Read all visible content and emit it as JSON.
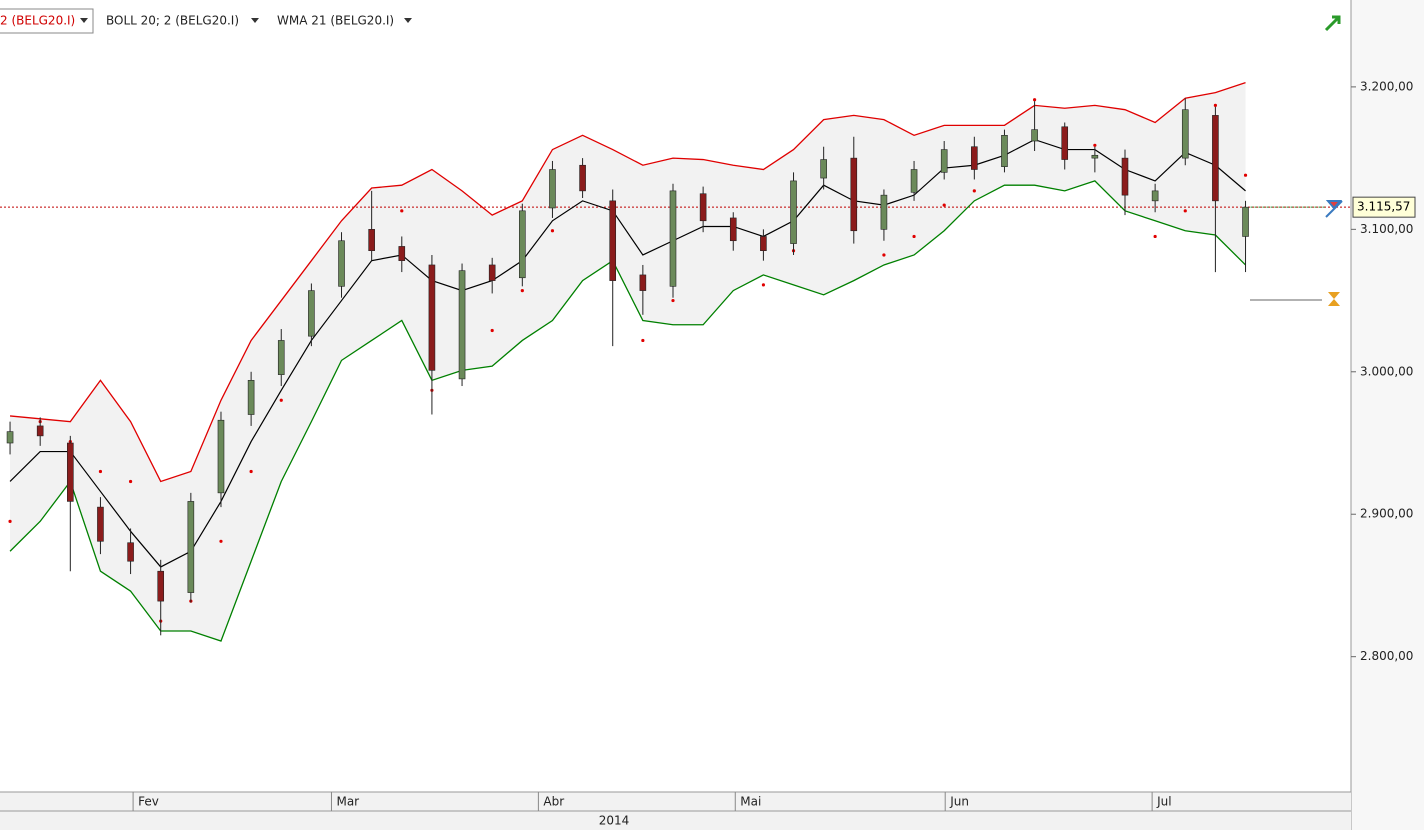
{
  "chart_data": {
    "type": "candlestick",
    "indicators": [
      {
        "name": "2 (BELG20.I)",
        "color": "#e00000",
        "style": "dots",
        "values": [
          2895,
          2965,
          2951,
          2930,
          2923,
          2825,
          2839,
          2881,
          2930,
          2980,
          3029,
          3064,
          3099,
          3113,
          2987,
          3004,
          3029,
          3057,
          3099,
          3138,
          3117,
          3022,
          3050,
          3110,
          3095,
          3061,
          3085,
          3145,
          3134,
          3082,
          3095,
          3117,
          3127,
          3149,
          3191,
          3170,
          3159,
          3138,
          3095,
          3113,
          3187,
          3138
        ]
      },
      {
        "name": "BOLL 20; 2 (BELG20.I)",
        "bands": [
          {
            "color": "#e00000",
            "values": [
              2969,
              2967,
              2965,
              2994,
              2965,
              2923,
              2930,
              2980,
              3022,
              3050,
              3078,
              3106,
              3129,
              3131,
              3142,
              3127,
              3110,
              3120,
              3156,
              3166,
              3156,
              3145,
              3150,
              3149,
              3145,
              3142,
              3156,
              3177,
              3180,
              3177,
              3166,
              3173,
              3173,
              3173,
              3187,
              3185,
              3187,
              3184,
              3175,
              3192,
              3196,
              3203
            ]
          },
          {
            "color": "#008000",
            "values": [
              2874,
              2895,
              2923,
              2860,
              2846,
              2818,
              2818,
              2811,
              2867,
              2923,
              2965,
              3008,
              3022,
              3036,
              2994,
              3001,
              3004,
              3022,
              3036,
              3064,
              3078,
              3036,
              3033,
              3033,
              3057,
              3068,
              3061,
              3054,
              3064,
              3075,
              3082,
              3099,
              3120,
              3131,
              3131,
              3127,
              3134,
              3113,
              3106,
              3099,
              3096,
              3075
            ]
          }
        ]
      },
      {
        "name": "WMA 21 (BELG20.I)",
        "color": "#000000",
        "values": [
          2923,
          2944,
          2944,
          2916,
          2888,
          2863,
          2874,
          2909,
          2951,
          2987,
          3022,
          3050,
          3078,
          3082,
          3064,
          3057,
          3064,
          3078,
          3106,
          3120,
          3113,
          3082,
          3092,
          3102,
          3102,
          3095,
          3106,
          3131,
          3120,
          3117,
          3124,
          3143,
          3145,
          3152,
          3163,
          3156,
          3156,
          3142,
          3134,
          3154,
          3145,
          3127
        ]
      }
    ],
    "x": [
      1,
      4,
      7,
      10,
      13,
      16,
      19,
      22,
      25,
      28,
      31,
      34,
      37,
      40,
      43,
      46,
      49,
      52,
      55,
      58,
      61,
      64,
      67,
      70,
      73,
      76,
      79,
      82,
      85,
      88,
      91,
      94,
      97,
      100,
      103,
      106,
      109,
      112,
      115,
      118,
      121,
      124
    ],
    "ohlc": {
      "open": [
        2950,
        2962,
        2950,
        2905,
        2880,
        2860,
        2845,
        2915,
        2970,
        2998,
        3025,
        3060,
        3100,
        3088,
        3075,
        2995,
        3075,
        3066,
        3115,
        3145,
        3120,
        3068,
        3060,
        3125,
        3108,
        3095,
        3090,
        3136,
        3150,
        3100,
        3126,
        3140,
        3158,
        3144,
        3162,
        3172,
        3150,
        3150,
        3120,
        3150,
        3180,
        3095
      ],
      "high": [
        2965,
        2968,
        2955,
        2912,
        2890,
        2868,
        2915,
        2972,
        3000,
        3030,
        3062,
        3098,
        3127,
        3095,
        3082,
        3076,
        3080,
        3118,
        3148,
        3150,
        3128,
        3075,
        3132,
        3130,
        3112,
        3100,
        3140,
        3158,
        3165,
        3128,
        3148,
        3162,
        3165,
        3170,
        3190,
        3175,
        3158,
        3156,
        3132,
        3192,
        3186,
        3120
      ],
      "low": [
        2942,
        2948,
        2860,
        2872,
        2858,
        2815,
        2838,
        2905,
        2962,
        2990,
        3018,
        3052,
        3078,
        3070,
        2970,
        2990,
        3055,
        3060,
        3108,
        3122,
        3018,
        3040,
        3052,
        3098,
        3085,
        3078,
        3082,
        3128,
        3090,
        3092,
        3120,
        3135,
        3135,
        3140,
        3155,
        3142,
        3140,
        3110,
        3112,
        3145,
        3070,
        3070
      ],
      "close": [
        2958,
        2955,
        2909,
        2881,
        2867,
        2839,
        2909,
        2966,
        2994,
        3022,
        3057,
        3092,
        3085,
        3078,
        3001,
        3071,
        3064,
        3113,
        3142,
        3127,
        3064,
        3057,
        3127,
        3106,
        3092,
        3085,
        3134,
        3149,
        3099,
        3124,
        3142,
        3156,
        3142,
        3166,
        3170,
        3149,
        3152,
        3124,
        3127,
        3184,
        3120,
        3115.57
      ]
    },
    "up_color": "#6b8a5a",
    "down_color": "#8b1c1c",
    "last": {
      "value": 3115.57,
      "label": "3.115,57"
    },
    "xlim": [
      0,
      134.5
    ],
    "xticks": [
      {
        "value": 13.25,
        "label": "Fev"
      },
      {
        "value": 33,
        "label": "Mar"
      },
      {
        "value": 53.6,
        "label": "Abr"
      },
      {
        "value": 73.2,
        "label": "Mai"
      },
      {
        "value": 94.1,
        "label": "Jun"
      },
      {
        "value": 114.7,
        "label": "Jul"
      }
    ],
    "year": "2014",
    "ylim": [
      2705,
      3261
    ],
    "yticks": [
      {
        "value": 2800,
        "label": "2.800,00"
      },
      {
        "value": 2900,
        "label": "2.900,00"
      },
      {
        "value": 3000,
        "label": "3.000,00"
      },
      {
        "value": 3100,
        "label": "3.100,00"
      },
      {
        "value": 3200,
        "label": "3.200,00"
      }
    ]
  }
}
